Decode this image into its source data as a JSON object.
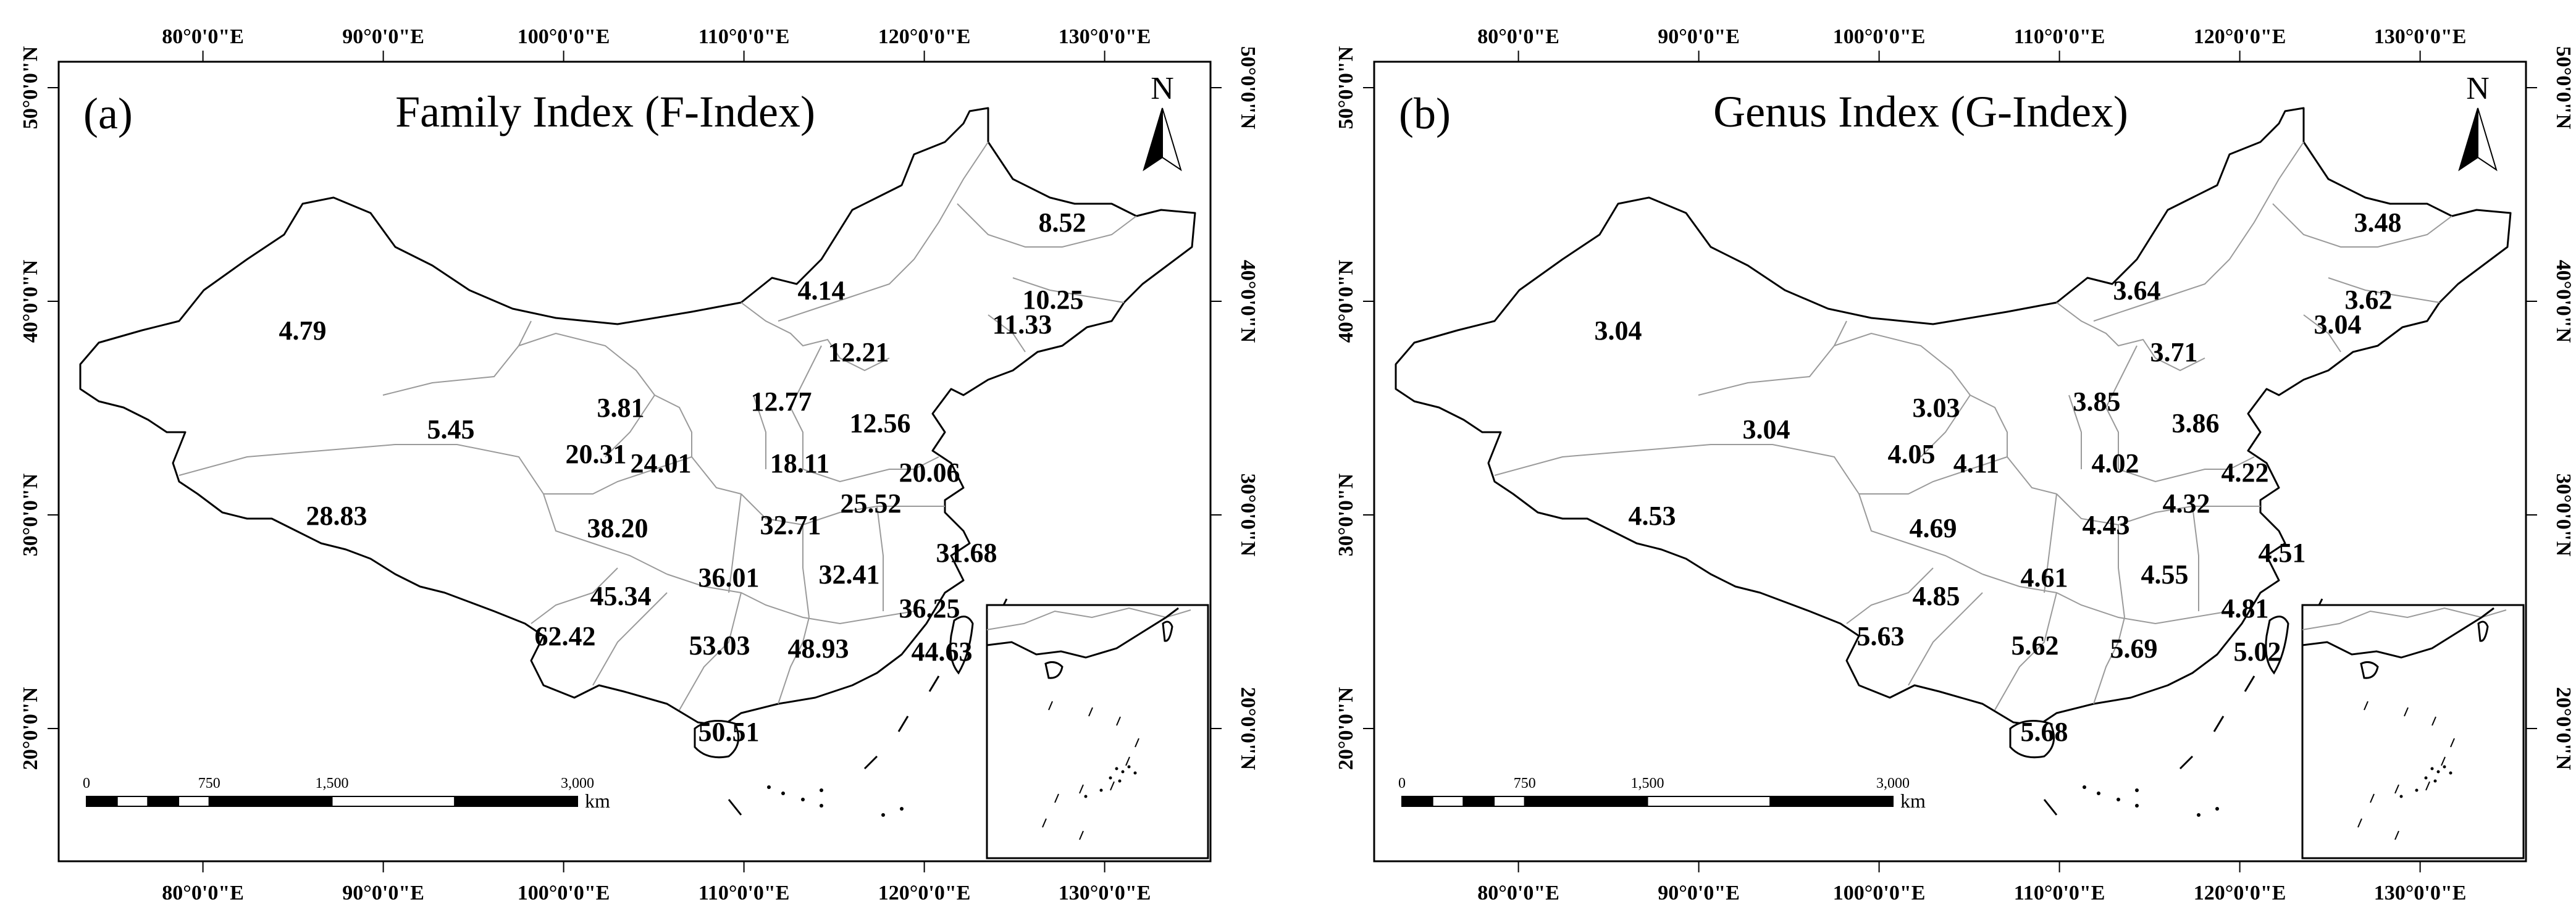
{
  "longitude_labels": [
    "80°0'0\"E",
    "90°0'0\"E",
    "100°0'0\"E",
    "110°0'0\"E",
    "120°0'0\"E",
    "130°0'0\"E"
  ],
  "latitude_labels": [
    "50°0'0\"N",
    "40°0'0\"N",
    "30°0'0\"N",
    "20°0'0\"N"
  ],
  "north_arrow": "N",
  "scale_bar": {
    "ticks": [
      "0",
      "750",
      "1,500",
      "3,000"
    ],
    "unit": "km"
  },
  "panels": [
    {
      "letter": "(a)",
      "title": "Family Index (F-Index)",
      "values": [
        "8.52",
        "4.14",
        "10.25",
        "11.33",
        "12.21",
        "4.79",
        "3.81",
        "12.77",
        "12.56",
        "5.45",
        "20.31",
        "24.01",
        "18.11",
        "20.06",
        "25.52",
        "28.83",
        "38.20",
        "32.71",
        "31.68",
        "32.41",
        "36.01",
        "45.34",
        "36.25",
        "62.42",
        "53.03",
        "48.93",
        "44.63",
        "50.51"
      ]
    },
    {
      "letter": "(b)",
      "title": "Genus Index (G-Index)",
      "values": [
        "3.48",
        "3.64",
        "3.62",
        "3.04",
        "3.71",
        "3.04",
        "3.03",
        "3.85",
        "3.86",
        "3.04",
        "4.05",
        "4.11",
        "4.02",
        "4.22",
        "4.32",
        "4.53",
        "4.69",
        "4.43",
        "4.51",
        "4.55",
        "4.61",
        "4.85",
        "4.81",
        "5.63",
        "5.62",
        "5.69",
        "5.02",
        "5.68"
      ]
    }
  ]
}
